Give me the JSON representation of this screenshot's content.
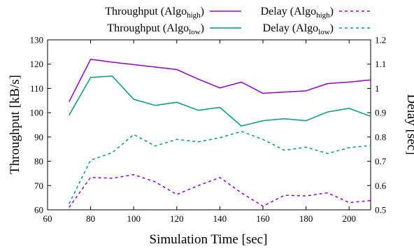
{
  "chart_data": {
    "type": "line",
    "xlabel": "Simulation Time [sec]",
    "ylabel": "Throughput [kB/s]",
    "y2label": "Delay [sec]",
    "xlim": [
      60,
      210
    ],
    "ylim": [
      60,
      130
    ],
    "y2lim": [
      0.5,
      1.2
    ],
    "xticks": [
      60,
      80,
      100,
      120,
      140,
      160,
      180,
      200
    ],
    "yticks": [
      60,
      70,
      80,
      90,
      100,
      110,
      120,
      130
    ],
    "y2ticks": [
      "0.5",
      "0.6",
      "0.7",
      "0.8",
      "0.9",
      "1",
      "1.1",
      "1.2"
    ],
    "legend_position": "top",
    "grid": false,
    "x": [
      70,
      80,
      90,
      100,
      110,
      120,
      130,
      140,
      150,
      160,
      170,
      180,
      190,
      200,
      210
    ],
    "series": [
      {
        "name": "Throughput (Algo",
        "name_sub": "high",
        "name_suffix": ")",
        "axis": "left",
        "style": "solid",
        "color": "#9400d3",
        "values": [
          104.5,
          122.0,
          120.8,
          119.8,
          118.8,
          117.8,
          113.8,
          110.2,
          112.6,
          108.0,
          108.5,
          109.0,
          112.0,
          112.6,
          113.5
        ]
      },
      {
        "name": "Throughput (Algo",
        "name_sub": "low",
        "name_suffix": ")",
        "axis": "left",
        "style": "solid",
        "color": "#009e73",
        "values": [
          99.0,
          114.5,
          115.1,
          105.5,
          103.0,
          104.3,
          101.0,
          102.2,
          94.5,
          96.7,
          97.5,
          96.7,
          100.3,
          101.8,
          98.5
        ]
      },
      {
        "name": "Delay (Algo",
        "name_sub": "high",
        "name_suffix": ")",
        "axis": "right",
        "style": "dashed",
        "color": "#9400d3",
        "values": [
          0.51,
          0.634,
          0.63,
          0.645,
          0.615,
          0.563,
          0.6,
          0.633,
          0.57,
          0.515,
          0.56,
          0.557,
          0.57,
          0.53,
          0.538
        ]
      },
      {
        "name": "Delay (Algo",
        "name_sub": "low",
        "name_suffix": ")",
        "axis": "right",
        "style": "dashed",
        "color": "#009e73",
        "values": [
          0.525,
          0.705,
          0.735,
          0.81,
          0.763,
          0.79,
          0.78,
          0.797,
          0.823,
          0.79,
          0.745,
          0.758,
          0.732,
          0.756,
          0.765
        ]
      }
    ]
  }
}
